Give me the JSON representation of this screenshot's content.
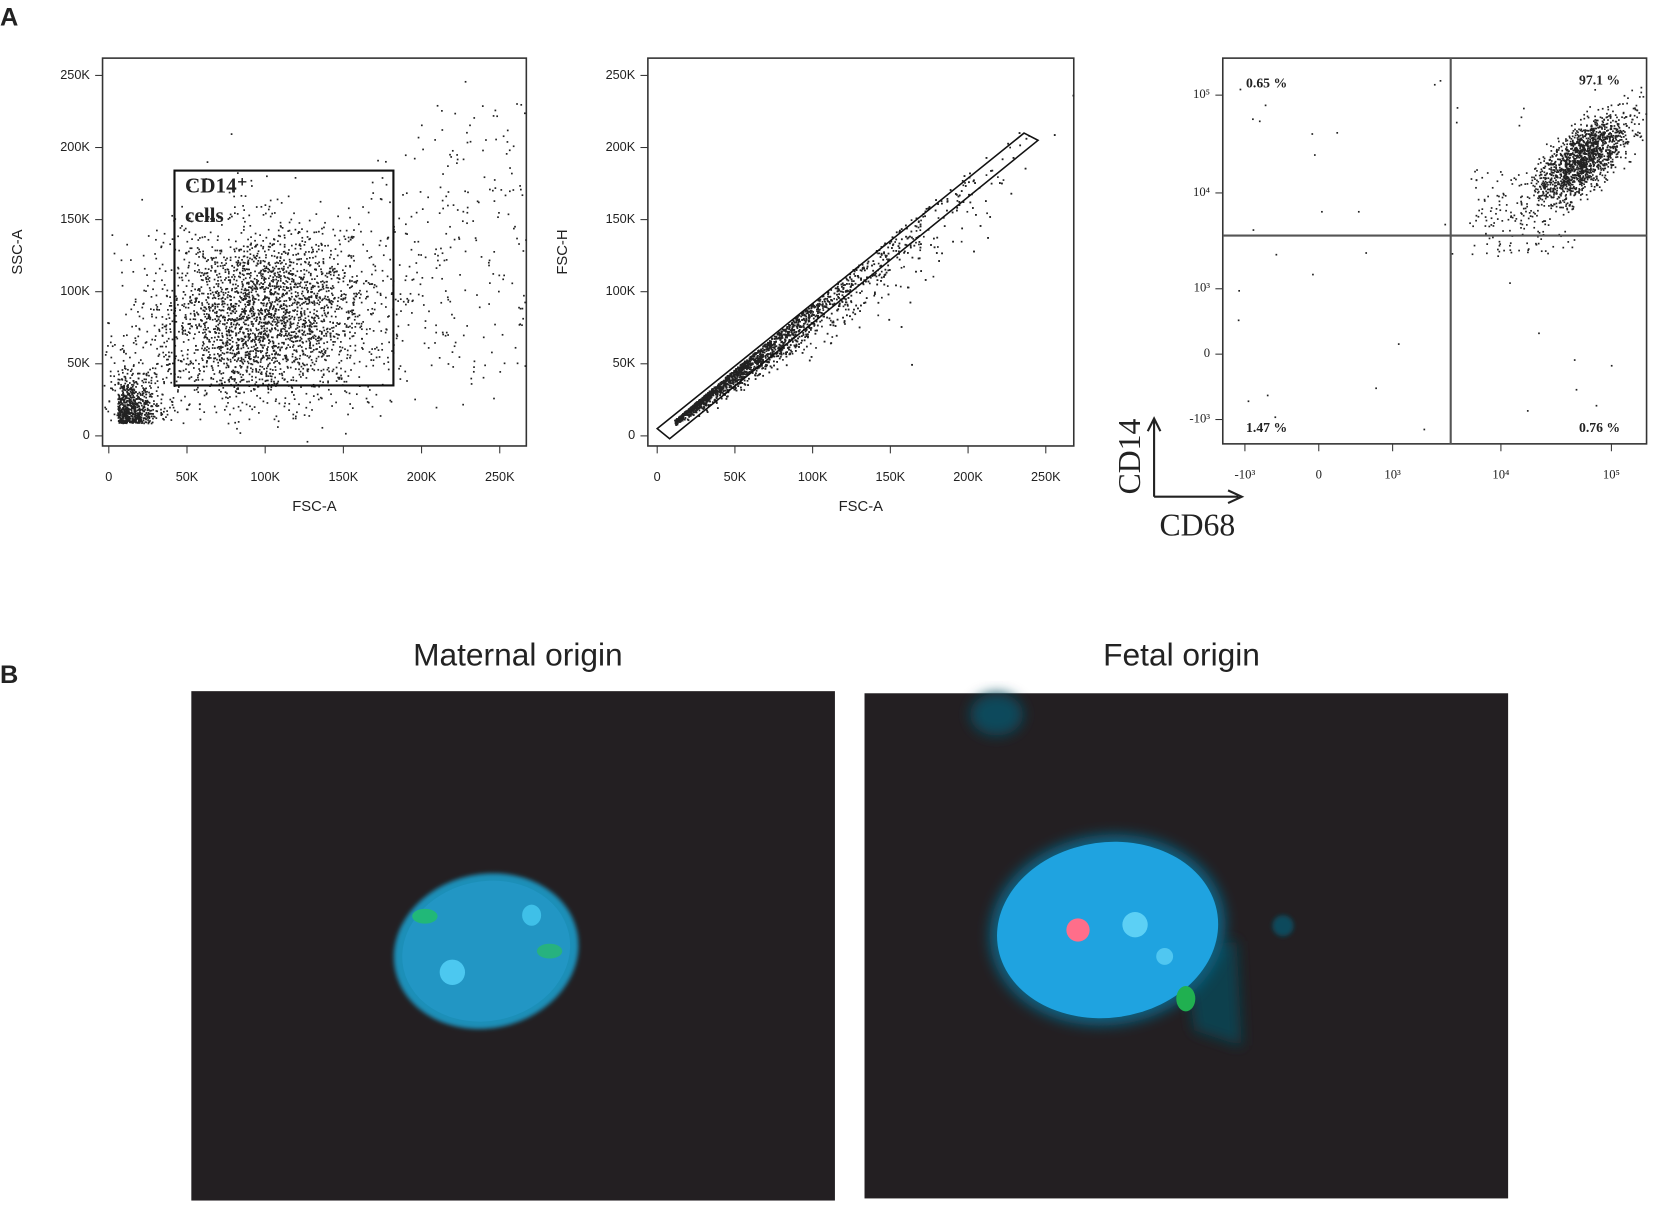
{
  "panel_labels": [
    "A",
    "B"
  ],
  "chart_data": [
    {
      "type": "scatter",
      "x_label": "FSC-A",
      "y_label": "SSC-A",
      "xlim": [
        -4000,
        267000
      ],
      "ylim": [
        -7000,
        262000
      ],
      "xticks": [
        0,
        {
          "value": 50000,
          "label": "50K"
        },
        {
          "value": 100000,
          "label": "100K"
        },
        {
          "value": 150000,
          "label": "150K"
        },
        {
          "value": 200000,
          "label": "200K"
        },
        {
          "value": 250000,
          "label": "250K"
        }
      ],
      "yticks": [
        0,
        {
          "value": 50000,
          "label": "50K"
        },
        {
          "value": 100000,
          "label": "100K"
        },
        {
          "value": 150000,
          "label": "150K"
        },
        {
          "value": 200000,
          "label": "200K"
        },
        {
          "value": 250000,
          "label": "250K"
        }
      ],
      "gate": {
        "label": [
          "CD14⁺",
          "cells"
        ],
        "x": [
          42000,
          182000
        ],
        "y": [
          35000,
          184000
        ]
      }
    },
    {
      "type": "scatter",
      "x_label": "FSC-A",
      "y_label": "FSC-H",
      "xlim": [
        -6000,
        268000
      ],
      "ylim": [
        -7000,
        262000
      ],
      "xticks": [
        0,
        {
          "value": 50000,
          "label": "50K"
        },
        {
          "value": 100000,
          "label": "100K"
        },
        {
          "value": 150000,
          "label": "150K"
        },
        {
          "value": 200000,
          "label": "200K"
        },
        {
          "value": 250000,
          "label": "250K"
        }
      ],
      "yticks": [
        0,
        {
          "value": 50000,
          "label": "50K"
        },
        {
          "value": 100000,
          "label": "100K"
        },
        {
          "value": 150000,
          "label": "150K"
        },
        {
          "value": 200000,
          "label": "200K"
        },
        {
          "value": 250000,
          "label": "250K"
        }
      ],
      "gate": {
        "polygon_x": [
          0,
          236000,
          245000,
          8000
        ],
        "polygon_y": [
          5000,
          210000,
          205000,
          -2000
        ]
      }
    },
    {
      "type": "scatter",
      "x_label": "CD68",
      "y_label": "CD14",
      "scale": "biexponential",
      "xlim": [
        -1632,
        208000
      ],
      "ylim": [
        -1832,
        239000
      ],
      "xticks": [
        {
          "value": -1000,
          "label": "-10³"
        },
        0,
        {
          "value": 1000,
          "label": "10³"
        },
        {
          "value": 10000,
          "label": "10⁴"
        },
        {
          "value": 100000,
          "label": "10⁵"
        }
      ],
      "yticks": [
        {
          "value": -1000,
          "label": "-10³"
        },
        0,
        {
          "value": 1000,
          "label": "10³"
        },
        {
          "value": 10000,
          "label": "10⁴"
        },
        {
          "value": 100000,
          "label": "10⁵"
        }
      ],
      "quadrant_x": 3500,
      "quadrant_y": 3650,
      "quadrants": {
        "values": [
          0.65,
          97.1,
          1.47,
          0.76
        ],
        "value_labels": [
          "0.65 %",
          "97.1 %",
          "1.47 %",
          "0.76 %"
        ]
      }
    }
  ],
  "micrographs": [
    {
      "title": "Maternal origin"
    },
    {
      "title": "Fetal origin"
    }
  ]
}
